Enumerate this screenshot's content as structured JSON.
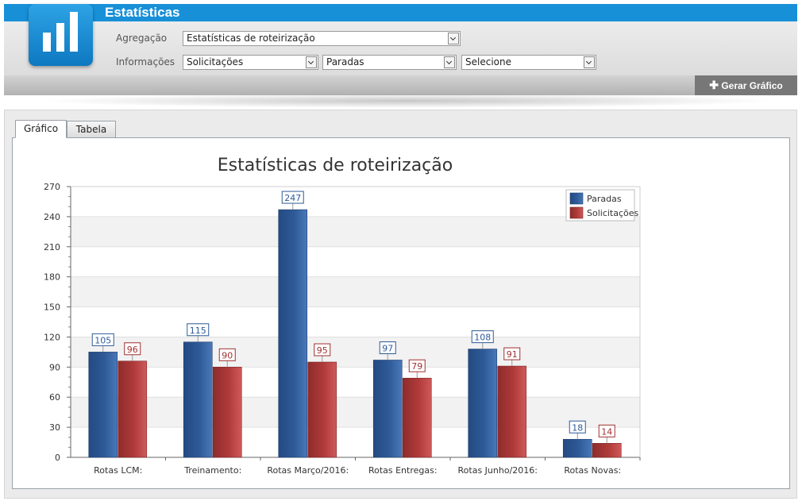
{
  "app": {
    "title": "Estatísticas"
  },
  "filters": {
    "aggregation_label": "Agregação",
    "aggregation_value": "Estatísticas de roteirização",
    "info_label": "Informações",
    "info_values": [
      "Solicitações",
      "Paradas",
      "Selecione"
    ]
  },
  "toolbar": {
    "generate_label": "Gerar Gráfico"
  },
  "tabs": [
    {
      "label": "Gráfico",
      "active": true
    },
    {
      "label": "Tabela",
      "active": false
    }
  ],
  "colors": {
    "paradas": "#2e5a98",
    "solicitacoes": "#b03a3a",
    "accent": "#1890d8"
  },
  "chart_data": {
    "type": "bar",
    "title": "Estatísticas de roteirização",
    "xlabel": "",
    "ylabel": "",
    "categories": [
      "Rotas LCM:",
      "Treinamento:",
      "Rotas Março/2016:",
      "Rotas Entregas:",
      "Rotas Junho/2016:",
      "Rotas Novas:"
    ],
    "series": [
      {
        "name": "Paradas",
        "values": [
          105,
          115,
          247,
          97,
          108,
          18
        ]
      },
      {
        "name": "Solicitações",
        "values": [
          96,
          90,
          95,
          79,
          91,
          14
        ]
      }
    ],
    "ylim": [
      0,
      270
    ],
    "yticks": [
      0,
      30,
      60,
      90,
      120,
      150,
      180,
      210,
      240,
      270
    ],
    "grid": "alternating-bands",
    "legend": "top-right"
  }
}
